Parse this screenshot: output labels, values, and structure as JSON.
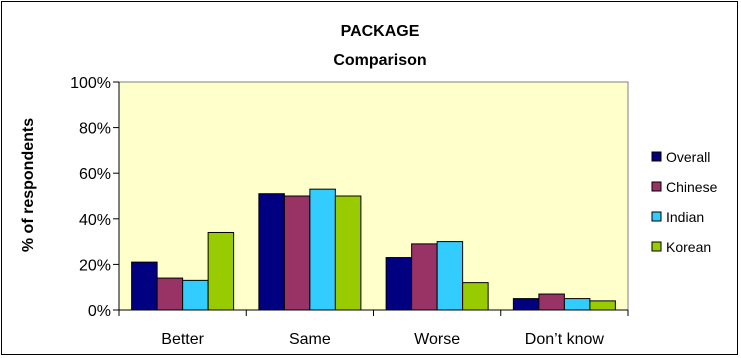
{
  "chart_data": {
    "type": "bar",
    "title": "PACKAGE",
    "subtitle": "Comparison",
    "xlabel": "",
    "ylabel": "% of respondents",
    "categories": [
      "Better",
      "Same",
      "Worse",
      "Don’t know"
    ],
    "series": [
      {
        "name": "Overall",
        "color": "#000080",
        "values": [
          21,
          51,
          23,
          5
        ]
      },
      {
        "name": "Chinese",
        "color": "#993366",
        "values": [
          14,
          50,
          29,
          7
        ]
      },
      {
        "name": "Indian",
        "color": "#33CCFF",
        "values": [
          13,
          53,
          30,
          5
        ]
      },
      {
        "name": "Korean",
        "color": "#99CC00",
        "values": [
          34,
          50,
          12,
          4
        ]
      }
    ],
    "ylim": [
      0,
      100
    ],
    "yticks": [
      0,
      20,
      40,
      60,
      80,
      100
    ],
    "ytick_labels": [
      "0%",
      "20%",
      "40%",
      "60%",
      "80%",
      "100%"
    ],
    "legend_position": "right",
    "plot_background": "#FFFFCC",
    "grid": false
  }
}
